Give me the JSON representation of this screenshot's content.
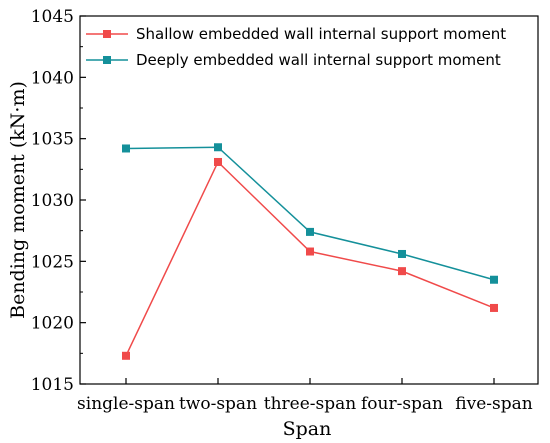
{
  "chart_data": {
    "type": "line",
    "xlabel": "Span",
    "ylabel": "Bending moment (kN·m)",
    "categories": [
      "single-span",
      "two-span",
      "three-span",
      "four-span",
      "five-span"
    ],
    "ylim": [
      1015,
      1045
    ],
    "yticks": [
      1015,
      1020,
      1025,
      1030,
      1035,
      1040,
      1045
    ],
    "grid": false,
    "legend_position": "top",
    "series": [
      {
        "name": "Shallow embedded wall internal support moment",
        "color": "#f04a4a",
        "marker": "square",
        "values": [
          1017.3,
          1033.1,
          1025.8,
          1024.2,
          1021.2
        ]
      },
      {
        "name": "Deeply embedded wall internal support moment",
        "color": "#14909a",
        "marker": "square",
        "values": [
          1034.2,
          1034.3,
          1027.4,
          1025.6,
          1023.5
        ]
      }
    ]
  }
}
